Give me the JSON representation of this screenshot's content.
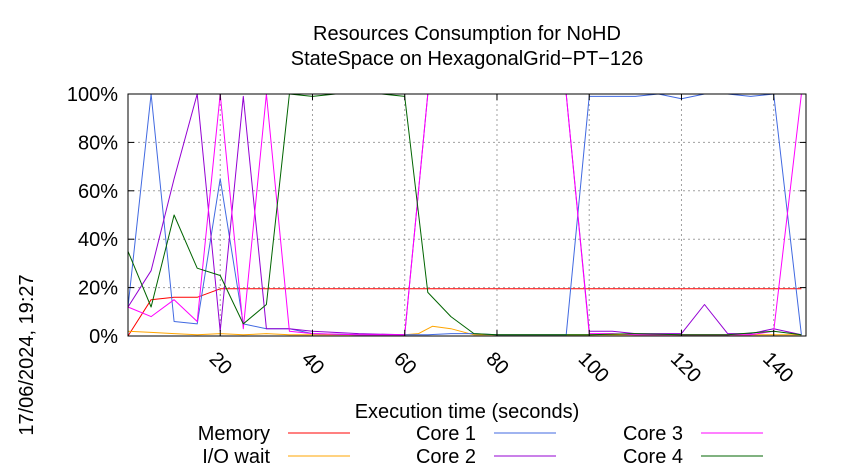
{
  "chart_data": {
    "type": "line",
    "title": "Resources Consumption for NoHD",
    "subtitle": "StateSpace on HexagonalGrid−PT−126",
    "xlabel": "Execution time (seconds)",
    "ylabel": "",
    "xlim": [
      0,
      147
    ],
    "ylim": [
      0,
      100
    ],
    "x_ticks": [
      20,
      40,
      60,
      80,
      100,
      120,
      140
    ],
    "y_ticks": [
      0,
      20,
      40,
      60,
      80,
      100
    ],
    "y_tick_labels": [
      "0%",
      "20%",
      "40%",
      "60%",
      "80%",
      "100%"
    ],
    "timestamp": "17/06/2024, 19:27",
    "grid": true,
    "legend_position": "bottom",
    "series": [
      {
        "name": "Memory",
        "color": "#ff0000",
        "x": [
          0,
          5,
          10,
          15,
          20,
          25,
          30,
          35,
          40,
          50,
          60,
          70,
          80,
          90,
          100,
          110,
          120,
          130,
          140,
          146
        ],
        "y": [
          0,
          15,
          16,
          16,
          19.5,
          19.5,
          19.5,
          19.5,
          19.5,
          19.5,
          19.5,
          19.5,
          19.5,
          19.5,
          19.5,
          19.5,
          19.5,
          19.5,
          19.5,
          19.5
        ]
      },
      {
        "name": "I/O wait",
        "color": "#ffa500",
        "x": [
          0,
          5,
          10,
          15,
          20,
          25,
          30,
          35,
          40,
          50,
          60,
          63,
          66,
          70,
          75,
          80,
          90,
          100,
          110,
          120,
          130,
          140,
          146
        ],
        "y": [
          2,
          1.5,
          1,
          0.5,
          1,
          0.5,
          1,
          0.5,
          0.5,
          0.5,
          0.5,
          1,
          4,
          3,
          0.5,
          0.5,
          0.5,
          0.5,
          0.5,
          0.5,
          0.5,
          0.5,
          0.5
        ]
      },
      {
        "name": "Core 1",
        "color": "#4169e1",
        "x": [
          0,
          5,
          10,
          15,
          20,
          25,
          30,
          35,
          40,
          50,
          60,
          65,
          70,
          75,
          80,
          85,
          90,
          95,
          100,
          105,
          110,
          115,
          120,
          125,
          130,
          135,
          140,
          146
        ],
        "y": [
          12,
          100,
          6,
          5,
          65,
          5,
          3,
          3,
          1,
          0.5,
          0.5,
          0.5,
          1,
          1,
          0.5,
          0.5,
          0.5,
          0.5,
          99,
          99,
          99,
          100,
          98,
          100,
          100,
          99,
          100,
          0.5
        ]
      },
      {
        "name": "Core 2",
        "color": "#9400d3",
        "x": [
          0,
          5,
          10,
          15,
          20,
          25,
          30,
          35,
          40,
          50,
          60,
          65,
          70,
          75,
          80,
          85,
          90,
          95,
          100,
          105,
          110,
          115,
          120,
          125,
          130,
          135,
          140,
          146
        ],
        "y": [
          12,
          27,
          65,
          100,
          2,
          99,
          3,
          3,
          2,
          1,
          0.5,
          100,
          100,
          100,
          100,
          100,
          100,
          100,
          2,
          2,
          1,
          1,
          1,
          13,
          1,
          1,
          3,
          0.5
        ]
      },
      {
        "name": "Core 3",
        "color": "#ff00ff",
        "x": [
          0,
          5,
          10,
          15,
          20,
          25,
          30,
          35,
          40,
          50,
          60,
          65,
          70,
          75,
          80,
          85,
          90,
          95,
          100,
          105,
          110,
          115,
          120,
          125,
          130,
          135,
          140,
          146
        ],
        "y": [
          12,
          8,
          15,
          6,
          100,
          3,
          100,
          2,
          1,
          0.5,
          0.5,
          100,
          100,
          100,
          100,
          100,
          100,
          100,
          1,
          1,
          0.5,
          0.5,
          0.5,
          0.5,
          0.5,
          0.5,
          2,
          100
        ]
      },
      {
        "name": "Core 4",
        "color": "#006400",
        "x": [
          0,
          5,
          10,
          15,
          20,
          25,
          30,
          35,
          40,
          45,
          50,
          55,
          60,
          65,
          70,
          75,
          80,
          90,
          100,
          110,
          120,
          130,
          140,
          146
        ],
        "y": [
          35,
          12,
          50,
          28,
          25,
          5,
          13,
          100,
          99,
          100,
          100,
          100,
          99,
          18,
          8,
          1,
          0.5,
          0.5,
          0.5,
          1,
          0.5,
          0.5,
          2,
          0.5
        ]
      }
    ]
  }
}
